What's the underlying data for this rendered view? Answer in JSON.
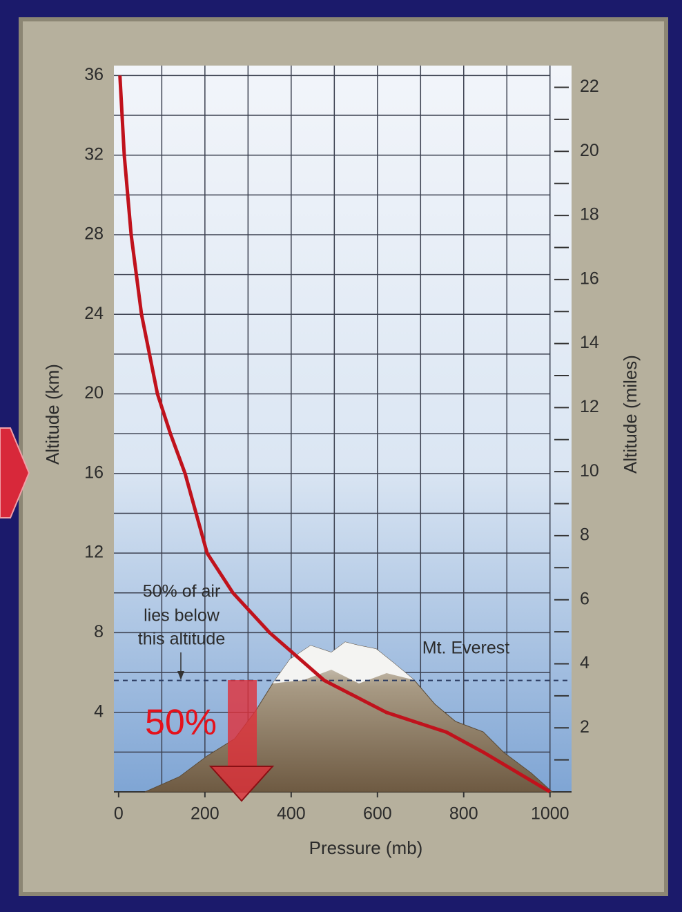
{
  "chart_data": {
    "type": "line",
    "x_label": "Pressure (mb)",
    "y_label": "Altitude (km)",
    "y2_label": "Altitude (miles)",
    "x": [
      3,
      13,
      29,
      53,
      90,
      120,
      154,
      205,
      265,
      350,
      477,
      620,
      760,
      845,
      1000
    ],
    "series": [
      {
        "color": "#c0121c",
        "values": [
          36,
          32,
          28,
          24,
          20,
          18,
          16,
          12,
          10,
          8,
          5.6,
          4,
          3,
          2,
          0
        ]
      }
    ],
    "xlim": [
      -11,
      1050
    ],
    "xticks": [
      0,
      200,
      400,
      600,
      800,
      1000
    ],
    "ylim": [
      0,
      36.5
    ],
    "yticks": [
      4,
      8,
      12,
      16,
      20,
      24,
      28,
      32,
      36
    ],
    "y2lim": [
      0,
      22.68
    ],
    "y2ticks": [
      2,
      4,
      6,
      8,
      10,
      12,
      14,
      16,
      18,
      20,
      22
    ],
    "y2_minor_ticks": [
      1,
      3,
      5,
      7,
      9,
      11,
      13,
      15,
      17,
      19,
      21
    ],
    "xgrid": [
      100,
      200,
      300,
      400,
      500,
      600,
      700,
      800,
      900,
      1000
    ],
    "ygrid": [
      2,
      4,
      6,
      8,
      10,
      12,
      14,
      16,
      18,
      20,
      22,
      24,
      26,
      28,
      30,
      32,
      34,
      36
    ],
    "grid": true,
    "reference_line": 5.6,
    "annotation_lines": [
      "50% of air",
      "lies below",
      "this altitude"
    ],
    "peak_label": "Mt. Everest",
    "highlight_label": "50%"
  }
}
